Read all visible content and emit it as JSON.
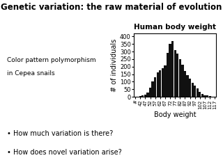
{
  "chart_data": {
    "type": "bar",
    "title": "Genetic variation: the raw material of evolution",
    "subtitle": "Human body weight",
    "x_label": "Body weight",
    "y_label": "# of individuals",
    "categories": [
      "#",
      null,
      "42",
      null,
      "47",
      null,
      "52",
      null,
      "57",
      null,
      "62",
      null,
      "67",
      null,
      "72",
      null,
      "77",
      null,
      "82",
      null,
      "87",
      null,
      "92",
      null,
      "97",
      null,
      "102",
      null,
      "107",
      null,
      "112",
      null,
      "117"
    ],
    "values": [
      2,
      3,
      5,
      8,
      15,
      30,
      60,
      100,
      130,
      160,
      175,
      190,
      210,
      290,
      350,
      370,
      310,
      285,
      250,
      215,
      170,
      145,
      120,
      95,
      75,
      55,
      35,
      20,
      12,
      8,
      5,
      3,
      2
    ],
    "color": "#111111",
    "ylim": [
      0,
      420
    ],
    "yticks": [
      0,
      50,
      100,
      150,
      200,
      250,
      300,
      350,
      400
    ],
    "grid": false,
    "annotations": [
      "Color pattern polymorphism",
      "in Cepea snails",
      "• How much variation is there?",
      "• How does novel variation arise?"
    ]
  }
}
